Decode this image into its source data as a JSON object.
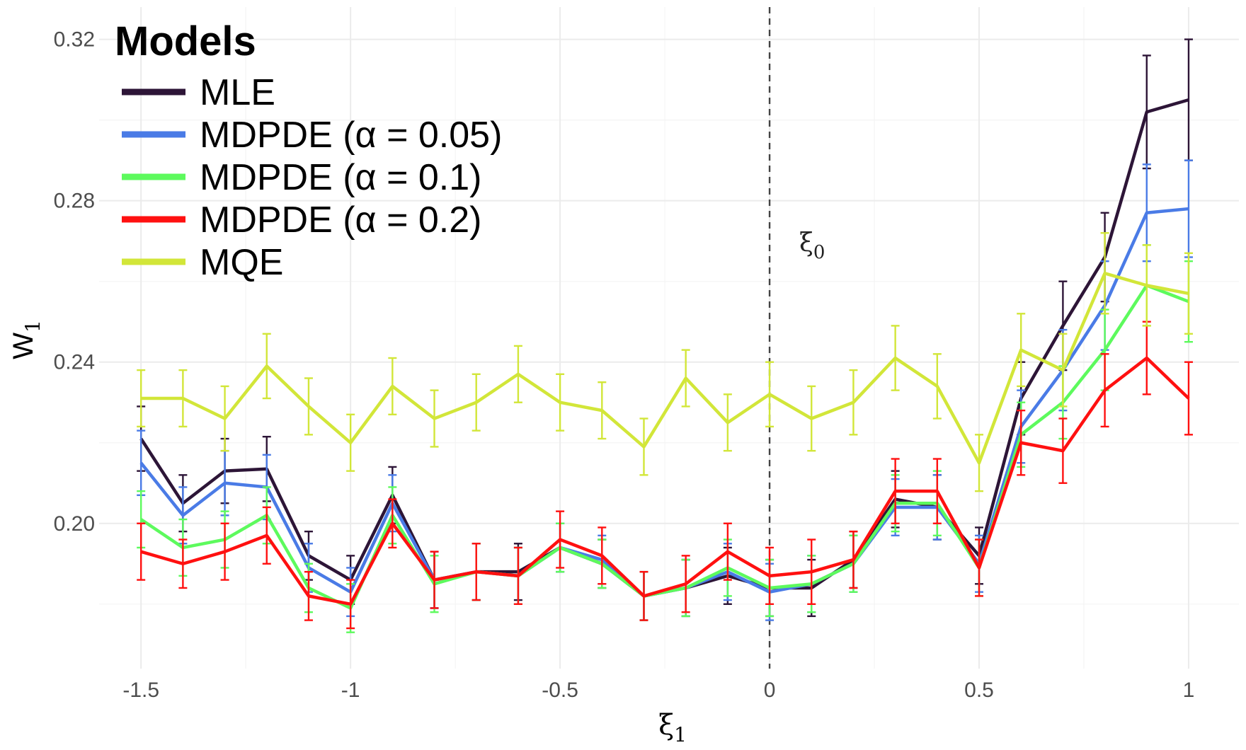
{
  "chart_data": {
    "type": "line",
    "xlabel": "ξ",
    "xlabel_sub": "1",
    "ylabel": "W",
    "ylabel_sub": "1",
    "xlim": [
      -1.6,
      1.12
    ],
    "ylim": [
      0.164,
      0.328
    ],
    "x_ticks": [
      -1.5,
      -1,
      -0.5,
      0,
      0.5,
      1
    ],
    "x_tick_labels": [
      "-1.5",
      "-1",
      "-0.5",
      "0",
      "0.5",
      "1"
    ],
    "y_ticks": [
      0.2,
      0.24,
      0.28,
      0.32
    ],
    "y_tick_labels": [
      "0.20",
      "0.24",
      "0.28",
      "0.32"
    ],
    "grid": true,
    "legend": {
      "title": "Models",
      "position": "top-left"
    },
    "reference_line": {
      "x": 0,
      "style": "dashed",
      "label": "ξ",
      "label_sub": "0"
    },
    "x": [
      -1.5,
      -1.4,
      -1.3,
      -1.2,
      -1.1,
      -1.0,
      -0.9,
      -0.8,
      -0.7,
      -0.6,
      -0.5,
      -0.4,
      -0.3,
      -0.2,
      -0.1,
      0.0,
      0.1,
      0.2,
      0.3,
      0.4,
      0.5,
      0.6,
      0.7,
      0.8,
      0.9,
      1.0
    ],
    "series": [
      {
        "name": "MLE",
        "color": "#2d1537",
        "values": [
          0.221,
          0.205,
          0.213,
          0.2135,
          0.192,
          0.186,
          0.207,
          0.186,
          0.188,
          0.188,
          0.194,
          0.19,
          0.182,
          0.184,
          0.187,
          0.184,
          0.184,
          0.191,
          0.206,
          0.204,
          0.192,
          0.231,
          0.249,
          0.266,
          0.302,
          0.305
        ],
        "err": [
          0.008,
          0.007,
          0.008,
          0.008,
          0.006,
          0.006,
          0.007,
          0.007,
          0.007,
          0.007,
          0.006,
          0.006,
          0.006,
          0.007,
          0.007,
          0.007,
          0.007,
          0.007,
          0.007,
          0.008,
          0.007,
          0.009,
          0.011,
          0.011,
          0.014,
          0.015
        ]
      },
      {
        "name": "MDPDE (α = 0.05)",
        "color": "#4a7be6",
        "values": [
          0.215,
          0.202,
          0.21,
          0.209,
          0.189,
          0.183,
          0.205,
          0.186,
          0.188,
          0.187,
          0.194,
          0.191,
          0.182,
          0.184,
          0.188,
          0.183,
          0.185,
          0.19,
          0.204,
          0.204,
          0.19,
          0.224,
          0.238,
          0.254,
          0.277,
          0.278
        ],
        "err": [
          0.008,
          0.007,
          0.008,
          0.008,
          0.006,
          0.006,
          0.007,
          0.007,
          0.007,
          0.007,
          0.006,
          0.006,
          0.006,
          0.007,
          0.007,
          0.007,
          0.007,
          0.007,
          0.007,
          0.008,
          0.007,
          0.009,
          0.01,
          0.011,
          0.012,
          0.012
        ]
      },
      {
        "name": "MDPDE (α = 0.1)",
        "color": "#5dfa5d",
        "values": [
          0.201,
          0.194,
          0.196,
          0.202,
          0.184,
          0.179,
          0.202,
          0.185,
          0.188,
          0.187,
          0.194,
          0.19,
          0.182,
          0.184,
          0.189,
          0.184,
          0.185,
          0.19,
          0.205,
          0.205,
          0.189,
          0.222,
          0.23,
          0.243,
          0.259,
          0.255
        ],
        "err": [
          0.007,
          0.007,
          0.007,
          0.007,
          0.006,
          0.006,
          0.007,
          0.007,
          0.007,
          0.007,
          0.006,
          0.006,
          0.006,
          0.007,
          0.007,
          0.007,
          0.007,
          0.007,
          0.007,
          0.008,
          0.007,
          0.008,
          0.009,
          0.01,
          0.01,
          0.01
        ]
      },
      {
        "name": "MDPDE (α = 0.2)",
        "color": "#ff1010",
        "values": [
          0.193,
          0.19,
          0.193,
          0.197,
          0.182,
          0.18,
          0.2,
          0.186,
          0.188,
          0.187,
          0.196,
          0.192,
          0.182,
          0.185,
          0.193,
          0.187,
          0.188,
          0.191,
          0.208,
          0.208,
          0.189,
          0.22,
          0.218,
          0.233,
          0.241,
          0.231
        ],
        "err": [
          0.007,
          0.006,
          0.007,
          0.007,
          0.006,
          0.006,
          0.006,
          0.007,
          0.007,
          0.007,
          0.007,
          0.007,
          0.006,
          0.007,
          0.007,
          0.007,
          0.008,
          0.007,
          0.008,
          0.008,
          0.007,
          0.008,
          0.008,
          0.009,
          0.009,
          0.009
        ]
      },
      {
        "name": "MQE",
        "color": "#d2e639",
        "values": [
          0.231,
          0.231,
          0.226,
          0.239,
          0.229,
          0.22,
          0.234,
          0.226,
          0.23,
          0.237,
          0.23,
          0.228,
          0.219,
          0.236,
          0.225,
          0.232,
          0.226,
          0.23,
          0.241,
          0.234,
          0.215,
          0.243,
          0.238,
          0.262,
          0.259,
          0.257
        ],
        "err": [
          0.007,
          0.007,
          0.008,
          0.008,
          0.007,
          0.007,
          0.007,
          0.007,
          0.007,
          0.007,
          0.007,
          0.007,
          0.007,
          0.007,
          0.007,
          0.008,
          0.008,
          0.008,
          0.008,
          0.008,
          0.007,
          0.009,
          0.009,
          0.01,
          0.01,
          0.01
        ]
      }
    ]
  }
}
